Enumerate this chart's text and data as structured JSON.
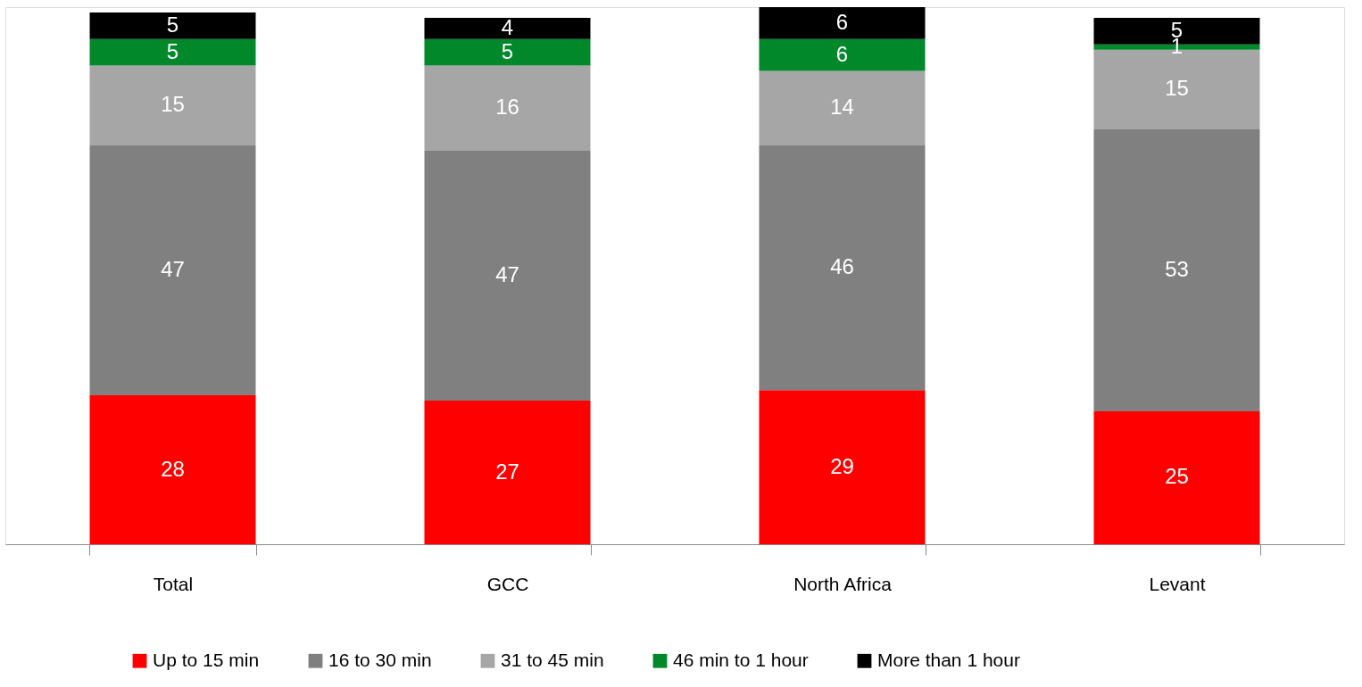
{
  "chart_data": {
    "type": "bar",
    "stacked": true,
    "categories": [
      "Total",
      "GCC",
      "North Africa",
      "Levant"
    ],
    "ylim": [
      0,
      101
    ],
    "tick_labels": "x",
    "data_labels": true,
    "legend": "bottom",
    "grid": false,
    "series": [
      {
        "name": "Up to 15 min",
        "color": "#ff0000",
        "values": [
          28,
          27,
          29,
          25
        ]
      },
      {
        "name": "16 to 30 min",
        "color": "#808080",
        "values": [
          47,
          47,
          46,
          53
        ]
      },
      {
        "name": "31 to 45 min",
        "color": "#a6a6a6",
        "values": [
          15,
          16,
          14,
          15
        ]
      },
      {
        "name": "46 min to 1 hour",
        "color": "#00882b",
        "values": [
          5,
          5,
          6,
          1
        ]
      },
      {
        "name": "More than 1 hour",
        "color": "#000000",
        "values": [
          5,
          4,
          6,
          5
        ]
      }
    ]
  }
}
